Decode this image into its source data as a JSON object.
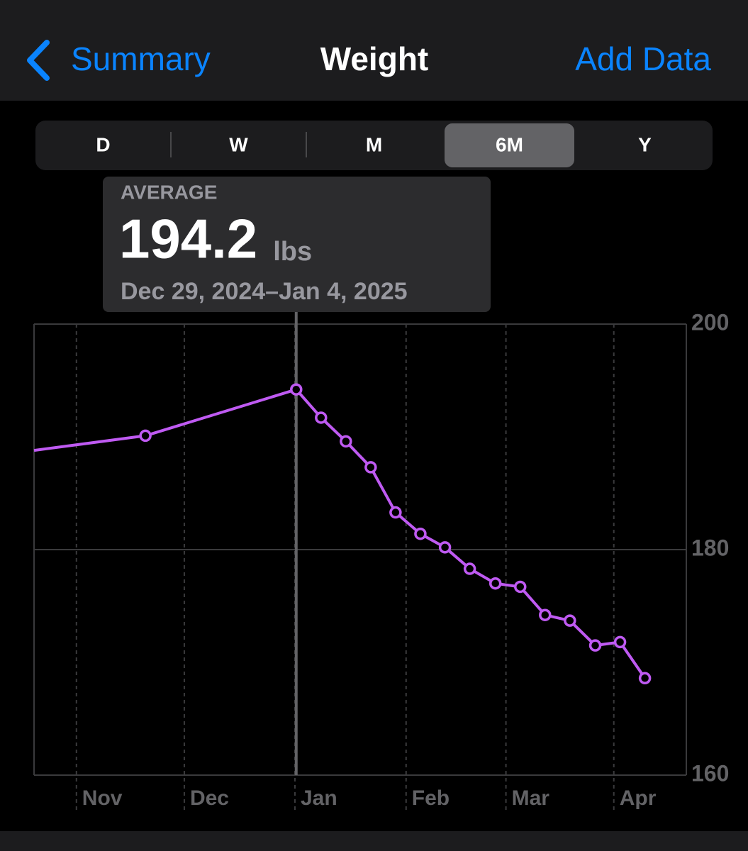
{
  "nav": {
    "back": "Summary",
    "title": "Weight",
    "action": "Add Data"
  },
  "segments": {
    "options": [
      "D",
      "W",
      "M",
      "6M",
      "Y"
    ],
    "selected": "6M"
  },
  "callout": {
    "label": "AVERAGE",
    "value": 194.2,
    "unit": "lbs",
    "range": "Dec 29, 2024–Jan 4, 2025"
  },
  "chart_data": {
    "type": "line",
    "color": "#bf5af2",
    "x": [
      0,
      4.44,
      10.45,
      11.44,
      12.43,
      13.42,
      14.41,
      15.4,
      16.38,
      17.37,
      18.39,
      19.38,
      20.37,
      21.36,
      22.37,
      23.36,
      24.35
    ],
    "values": [
      188.8,
      190.1,
      194.2,
      191.7,
      189.6,
      187.3,
      183.3,
      181.4,
      180.2,
      178.3,
      177.0,
      176.7,
      174.2,
      173.7,
      171.5,
      171.8,
      168.6
    ],
    "xlim": [
      0,
      26
    ],
    "ylim": [
      160,
      200
    ],
    "yticks": [
      160,
      180,
      200
    ],
    "xticks": [
      {
        "value": 1.69,
        "label": "Nov"
      },
      {
        "value": 5.99,
        "label": "Dec"
      },
      {
        "value": 10.4,
        "label": "Jan"
      },
      {
        "value": 14.83,
        "label": "Feb"
      },
      {
        "value": 18.81,
        "label": "Mar"
      },
      {
        "value": 23.11,
        "label": "Apr"
      }
    ],
    "grid": true
  }
}
